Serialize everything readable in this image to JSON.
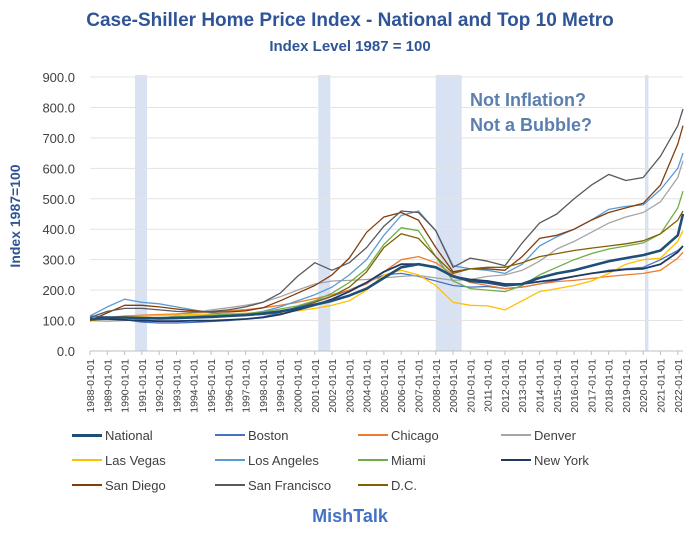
{
  "page": {
    "title": "Case-Shiller Home Price Index - National and Top 10 Metro",
    "subtitle": "Index Level 1987 = 100",
    "footer": "MishTalk"
  },
  "chart_data": {
    "type": "line",
    "ylabel": "Index 1987=100",
    "ylim": [
      0,
      900
    ],
    "yticks": [
      "0.0",
      "100.0",
      "200.0",
      "300.0",
      "400.0",
      "500.0",
      "600.0",
      "700.0",
      "800.0",
      "900.0"
    ],
    "xlim": [
      1988.0,
      2022.0
    ],
    "xticks": [
      "1988-01-01",
      "1989-01-01",
      "1990-01-01",
      "1991-01-01",
      "1992-01-01",
      "1993-01-01",
      "1994-01-01",
      "1995-01-01",
      "1996-01-01",
      "1997-01-01",
      "1998-01-01",
      "1999-01-01",
      "2000-01-01",
      "2001-01-01",
      "2002-01-01",
      "2003-01-01",
      "2004-01-01",
      "2005-01-01",
      "2006-01-01",
      "2007-01-01",
      "2008-01-01",
      "2009-01-01",
      "2010-01-01",
      "2011-01-01",
      "2012-01-01",
      "2013-01-01",
      "2014-01-01",
      "2015-01-01",
      "2016-01-01",
      "2017-01-01",
      "2018-01-01",
      "2019-01-01",
      "2020-01-01",
      "2021-01-01",
      "2022-01-01"
    ],
    "grid": "horizontal",
    "legend_position": "bottom",
    "annotation": {
      "line1": "Not Inflation?",
      "line2": "Not a Bubble?"
    },
    "recessions": [
      [
        2.6,
        3.3
      ],
      [
        13.2,
        13.9
      ],
      [
        20.0,
        21.5
      ],
      [
        32.1,
        32.3
      ]
    ],
    "series": [
      {
        "name": "National",
        "color": "#1F4E79",
        "width": 2.6,
        "x": [
          0,
          1,
          2,
          3,
          4,
          5,
          6,
          7,
          8,
          9,
          10,
          11,
          12,
          13,
          14,
          15,
          16,
          17,
          18,
          19,
          20,
          21,
          22,
          23,
          24,
          25,
          26,
          27,
          28,
          29,
          30,
          31,
          32,
          33,
          34,
          34.3
        ],
        "y": [
          105,
          110,
          110,
          108,
          107,
          108,
          110,
          112,
          115,
          118,
          123,
          130,
          140,
          152,
          165,
          182,
          205,
          240,
          275,
          285,
          275,
          245,
          230,
          225,
          215,
          220,
          240,
          255,
          265,
          280,
          295,
          305,
          315,
          330,
          380,
          450
        ]
      },
      {
        "name": "Boston",
        "color": "#4472C4",
        "width": 1.3,
        "x": [
          0,
          1,
          2,
          3,
          4,
          5,
          6,
          7,
          8,
          9,
          10,
          11,
          12,
          13,
          14,
          15,
          16,
          17,
          18,
          19,
          20,
          21,
          22,
          23,
          24,
          25,
          26,
          27,
          28,
          29,
          30,
          31,
          32,
          33,
          34,
          34.3
        ],
        "y": [
          115,
          112,
          103,
          95,
          92,
          92,
          94,
          97,
          100,
          105,
          112,
          125,
          145,
          162,
          180,
          200,
          225,
          250,
          255,
          245,
          230,
          215,
          210,
          212,
          205,
          210,
          220,
          232,
          245,
          255,
          265,
          270,
          275,
          300,
          330,
          345
        ]
      },
      {
        "name": "Chicago",
        "color": "#ED7D31",
        "width": 1.3,
        "x": [
          0,
          1,
          2,
          3,
          4,
          5,
          6,
          7,
          8,
          9,
          10,
          11,
          12,
          13,
          14,
          15,
          16,
          17,
          18,
          19,
          20,
          21,
          22,
          23,
          24,
          25,
          26,
          27,
          28,
          29,
          30,
          31,
          32,
          33,
          34,
          34.3
        ],
        "y": [
          100,
          110,
          115,
          118,
          120,
          122,
          125,
          128,
          132,
          136,
          142,
          150,
          160,
          172,
          185,
          200,
          220,
          260,
          300,
          310,
          290,
          250,
          225,
          215,
          205,
          210,
          220,
          228,
          232,
          238,
          245,
          250,
          255,
          265,
          305,
          325
        ]
      },
      {
        "name": "Denver",
        "color": "#A5A5A5",
        "width": 1.3,
        "x": [
          0,
          1,
          2,
          3,
          4,
          5,
          6,
          7,
          8,
          9,
          10,
          11,
          12,
          13,
          14,
          15,
          16,
          17,
          18,
          19,
          20,
          21,
          22,
          23,
          24,
          25,
          26,
          27,
          28,
          29,
          30,
          31,
          32,
          33,
          34,
          34.3
        ],
        "y": [
          100,
          98,
          100,
          103,
          107,
          115,
          125,
          135,
          142,
          150,
          160,
          178,
          200,
          220,
          230,
          232,
          235,
          240,
          245,
          248,
          240,
          232,
          235,
          245,
          250,
          265,
          295,
          335,
          360,
          390,
          420,
          440,
          455,
          490,
          570,
          625
        ]
      },
      {
        "name": "Las Vegas",
        "color": "#FFC000",
        "width": 1.3,
        "x": [
          0,
          1,
          2,
          3,
          4,
          5,
          6,
          7,
          8,
          9,
          10,
          11,
          12,
          13,
          14,
          15,
          16,
          17,
          18,
          19,
          20,
          21,
          22,
          23,
          24,
          25,
          26,
          27,
          28,
          29,
          30,
          31,
          32,
          33,
          34,
          34.3
        ],
        "y": [
          100,
          107,
          113,
          115,
          117,
          118,
          120,
          122,
          123,
          124,
          126,
          128,
          132,
          140,
          150,
          165,
          200,
          250,
          265,
          250,
          215,
          160,
          150,
          148,
          135,
          165,
          195,
          205,
          215,
          230,
          255,
          285,
          300,
          305,
          360,
          395
        ]
      },
      {
        "name": "Los Angeles",
        "color": "#5B9BD5",
        "width": 1.3,
        "x": [
          0,
          1,
          2,
          3,
          4,
          5,
          6,
          7,
          8,
          9,
          10,
          11,
          12,
          13,
          14,
          15,
          16,
          17,
          18,
          19,
          20,
          21,
          22,
          23,
          24,
          25,
          26,
          27,
          28,
          29,
          30,
          31,
          32,
          33,
          34,
          34.3
        ],
        "y": [
          115,
          145,
          170,
          160,
          155,
          145,
          135,
          125,
          120,
          122,
          130,
          145,
          165,
          185,
          210,
          250,
          300,
          380,
          445,
          460,
          395,
          280,
          270,
          265,
          255,
          285,
          345,
          375,
          400,
          430,
          465,
          475,
          480,
          530,
          600,
          650
        ]
      },
      {
        "name": "Miami",
        "color": "#70AD47",
        "width": 1.3,
        "x": [
          0,
          1,
          2,
          3,
          4,
          5,
          6,
          7,
          8,
          9,
          10,
          11,
          12,
          13,
          14,
          15,
          16,
          17,
          18,
          19,
          20,
          21,
          22,
          23,
          24,
          25,
          26,
          27,
          28,
          29,
          30,
          31,
          32,
          33,
          34,
          34.3
        ],
        "y": [
          100,
          105,
          108,
          108,
          110,
          112,
          115,
          118,
          120,
          122,
          128,
          138,
          148,
          165,
          190,
          225,
          270,
          350,
          405,
          395,
          310,
          230,
          205,
          200,
          195,
          215,
          250,
          275,
          300,
          320,
          335,
          345,
          355,
          385,
          470,
          525
        ]
      },
      {
        "name": "New York",
        "color": "#203864",
        "width": 1.8,
        "x": [
          0,
          1,
          2,
          3,
          4,
          5,
          6,
          7,
          8,
          9,
          10,
          11,
          12,
          13,
          14,
          15,
          16,
          17,
          18,
          19,
          20,
          21,
          22,
          23,
          24,
          25,
          26,
          27,
          28,
          29,
          30,
          31,
          32,
          33,
          34,
          34.3
        ],
        "y": [
          105,
          105,
          102,
          100,
          98,
          98,
          100,
          100,
          102,
          105,
          110,
          120,
          135,
          150,
          170,
          195,
          225,
          260,
          285,
          285,
          275,
          245,
          235,
          230,
          220,
          220,
          228,
          235,
          245,
          255,
          262,
          268,
          270,
          285,
          325,
          345
        ]
      },
      {
        "name": "San Diego",
        "color": "#843C0C",
        "width": 1.3,
        "x": [
          0,
          1,
          2,
          3,
          4,
          5,
          6,
          7,
          8,
          9,
          10,
          11,
          12,
          13,
          14,
          15,
          16,
          17,
          18,
          19,
          20,
          21,
          22,
          23,
          24,
          25,
          26,
          27,
          28,
          29,
          30,
          31,
          32,
          33,
          34,
          34.3
        ],
        "y": [
          100,
          125,
          150,
          150,
          145,
          138,
          132,
          128,
          128,
          132,
          142,
          165,
          190,
          215,
          250,
          305,
          390,
          440,
          455,
          430,
          340,
          260,
          270,
          270,
          265,
          310,
          370,
          380,
          400,
          430,
          455,
          470,
          485,
          545,
          680,
          740
        ]
      },
      {
        "name": "San Francisco",
        "color": "#595959",
        "width": 1.3,
        "x": [
          0,
          1,
          2,
          3,
          4,
          5,
          6,
          7,
          8,
          9,
          10,
          11,
          12,
          13,
          14,
          15,
          16,
          17,
          18,
          19,
          20,
          21,
          22,
          23,
          24,
          25,
          26,
          27,
          28,
          29,
          30,
          31,
          32,
          33,
          34,
          34.3
        ],
        "y": [
          110,
          130,
          140,
          140,
          135,
          130,
          128,
          130,
          135,
          145,
          160,
          190,
          245,
          290,
          265,
          290,
          340,
          410,
          460,
          455,
          395,
          275,
          305,
          295,
          280,
          355,
          420,
          450,
          500,
          545,
          580,
          560,
          570,
          640,
          740,
          795
        ]
      },
      {
        "name": "D.C.",
        "color": "#806000",
        "width": 1.3,
        "x": [
          0,
          1,
          2,
          3,
          4,
          5,
          6,
          7,
          8,
          9,
          10,
          11,
          12,
          13,
          14,
          15,
          16,
          17,
          18,
          19,
          20,
          21,
          22,
          23,
          24,
          25,
          26,
          27,
          28,
          29,
          30,
          31,
          32,
          33,
          34,
          34.3
        ],
        "y": [
          100,
          108,
          112,
          110,
          110,
          110,
          112,
          114,
          115,
          117,
          120,
          127,
          140,
          160,
          180,
          210,
          260,
          340,
          385,
          370,
          310,
          255,
          270,
          275,
          275,
          290,
          310,
          320,
          330,
          338,
          345,
          352,
          362,
          385,
          430,
          460
        ]
      }
    ]
  }
}
